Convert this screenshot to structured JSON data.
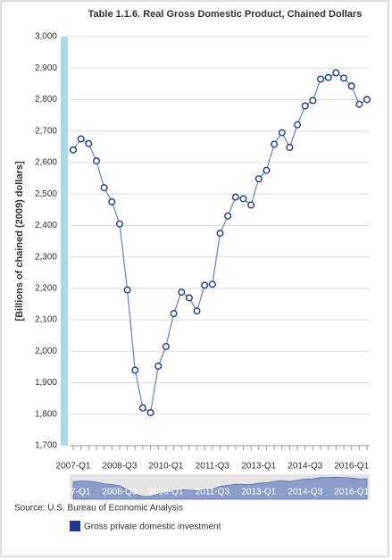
{
  "chart_data": {
    "type": "line",
    "title": "Table 1.1.6. Real Gross Domestic Product, Chained Dollars",
    "y_label": "[Billions of chained (2009) dollars]",
    "source": "Source: U.S. Bureau of Economic Analysis",
    "categories": [
      "2007-Q1",
      null,
      null,
      null,
      null,
      null,
      "2008-Q3",
      null,
      null,
      null,
      null,
      null,
      "2010-Q1",
      null,
      null,
      null,
      null,
      null,
      "2011-Q3",
      null,
      null,
      null,
      null,
      null,
      "2013-Q1",
      null,
      null,
      null,
      null,
      null,
      "2014-Q3",
      null,
      null,
      null,
      null,
      null,
      "2016-Q1",
      null,
      null
    ],
    "series": [
      {
        "name": "Gross private domestic investment",
        "color": "#1f3a93",
        "values": [
          2640,
          2675,
          2660,
          2605,
          2520,
          2475,
          2405,
          2195,
          1940,
          1820,
          1805,
          1953,
          2015,
          2120,
          2188,
          2170,
          2128,
          2210,
          2213,
          2375,
          2430,
          2490,
          2485,
          2465,
          2548,
          2575,
          2658,
          2695,
          2648,
          2720,
          2780,
          2797,
          2865,
          2870,
          2885,
          2868,
          2843,
          2785,
          2800
        ]
      }
    ],
    "ylim": [
      1700,
      3000
    ],
    "yticks": [
      {
        "value": 1700,
        "label": "1,700"
      },
      {
        "value": 1800,
        "label": "1,800"
      },
      {
        "value": 1900,
        "label": "1,900"
      },
      {
        "value": 2000,
        "label": "2,000"
      },
      {
        "value": 2100,
        "label": "2,100"
      },
      {
        "value": 2200,
        "label": "2,200"
      },
      {
        "value": 2300,
        "label": "2,300"
      },
      {
        "value": 2400,
        "label": "2,400"
      },
      {
        "value": 2500,
        "label": "2,500"
      },
      {
        "value": 2600,
        "label": "2,600"
      },
      {
        "value": 2700,
        "label": "2,700"
      },
      {
        "value": 2800,
        "label": "2,800"
      },
      {
        "value": 2900,
        "label": "2,900"
      },
      {
        "value": 3000,
        "label": "3,000"
      }
    ],
    "grid": true,
    "legend": "bottom-left"
  }
}
